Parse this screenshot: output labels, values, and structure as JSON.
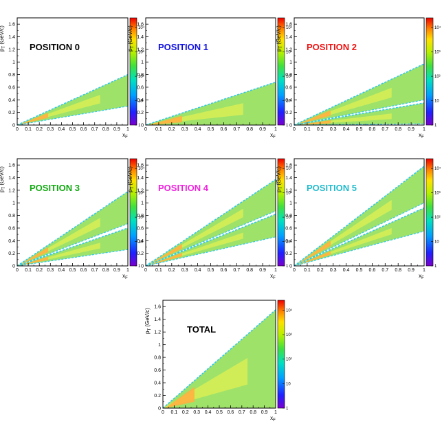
{
  "colors": {
    "position_0": "#000000",
    "position_1": "#1010e0",
    "position_2": "#ee1111",
    "position_3": "#11aa11",
    "position_4": "#ee22dd",
    "position_5": "#22bbcc",
    "total": "#000000",
    "palette": "rainbow (violet-blue-cyan-green-yellow-red), log z scale"
  },
  "chart_data": [
    {
      "type": "heatmap",
      "title": "POSITION 0",
      "title_color": "#000000",
      "xlabel": "x_F",
      "ylabel": "p_T (GeV/c)",
      "xlim": [
        0,
        1
      ],
      "ylim": [
        0,
        1.7
      ],
      "x_ticks": [
        "0",
        "0.1",
        "0.2",
        "0.3",
        "0.4",
        "0.5",
        "0.6",
        "0.7",
        "0.8",
        "0.9",
        "1"
      ],
      "y_ticks": [
        "0",
        "0.2",
        "0.4",
        "0.6",
        "0.8",
        "1",
        "1.2",
        "1.4",
        "1.6"
      ],
      "z_scale": "log",
      "z_ticks": [
        "1",
        "10",
        "10²",
        "10³",
        "10⁴"
      ],
      "bands": [
        {
          "x_end": 1,
          "pt_low_at_x1": 0.3,
          "pt_high_at_x1": 0.8
        }
      ]
    },
    {
      "type": "heatmap",
      "title": "POSITION 1",
      "title_color": "#1010e0",
      "xlabel": "x_F",
      "ylabel": "p_T (GeV/c)",
      "xlim": [
        0,
        1
      ],
      "ylim": [
        0,
        1.7
      ],
      "x_ticks": [
        "0",
        "0.1",
        "0.2",
        "0.3",
        "0.4",
        "0.5",
        "0.6",
        "0.7",
        "0.8",
        "0.9",
        "1"
      ],
      "y_ticks": [
        "0",
        "0.2",
        "0.4",
        "0.6",
        "0.8",
        "1",
        "1.2",
        "1.4",
        "1.6"
      ],
      "z_scale": "log",
      "z_ticks": [
        "1",
        "10",
        "10²",
        "10³",
        "10⁴"
      ],
      "bands": [
        {
          "x_end": 1,
          "pt_low_at_x1": 0,
          "pt_high_at_x1": 0.68
        }
      ]
    },
    {
      "type": "heatmap",
      "title": "POSITION 2",
      "title_color": "#ee1111",
      "xlabel": "x_F",
      "ylabel": "p_T (GeV/c)",
      "xlim": [
        0,
        1
      ],
      "ylim": [
        0,
        1.7
      ],
      "x_ticks": [
        "0",
        "0.1",
        "0.2",
        "0.3",
        "0.4",
        "0.5",
        "0.6",
        "0.7",
        "0.8",
        "0.9",
        "1"
      ],
      "y_ticks": [
        "0",
        "0.2",
        "0.4",
        "0.6",
        "0.8",
        "1",
        "1.2",
        "1.4",
        "1.6"
      ],
      "z_scale": "log",
      "z_ticks": [
        "1",
        "10",
        "10²",
        "10³",
        "10⁴"
      ],
      "bands": [
        {
          "x_end": 1,
          "pt_low_at_x1": 0.4,
          "pt_high_at_x1": 0.97
        },
        {
          "x_end": 1,
          "pt_low_at_x1": 0.02,
          "pt_high_at_x1": 0.35
        }
      ]
    },
    {
      "type": "heatmap",
      "title": "POSITION 3",
      "title_color": "#11aa11",
      "xlabel": "x_F",
      "ylabel": "p_T (GeV/c)",
      "xlim": [
        0,
        1
      ],
      "ylim": [
        0,
        1.7
      ],
      "x_ticks": [
        "0",
        "0.1",
        "0.2",
        "0.3",
        "0.4",
        "0.5",
        "0.6",
        "0.7",
        "0.8",
        "0.9",
        "1"
      ],
      "y_ticks": [
        "0",
        "0.2",
        "0.4",
        "0.6",
        "0.8",
        "1",
        "1.2",
        "1.4",
        "1.6"
      ],
      "z_scale": "log",
      "z_ticks": [
        "1",
        "10",
        "10²",
        "10³",
        "10⁴"
      ],
      "bands": [
        {
          "x_end": 1,
          "pt_low_at_x1": 0.67,
          "pt_high_at_x1": 1.18
        },
        {
          "x_end": 1,
          "pt_low_at_x1": 0.26,
          "pt_high_at_x1": 0.6
        }
      ]
    },
    {
      "type": "heatmap",
      "title": "POSITION 4",
      "title_color": "#ee22dd",
      "xlabel": "x_F",
      "ylabel": "p_T (GeV/c)",
      "xlim": [
        0,
        1
      ],
      "ylim": [
        0,
        1.7
      ],
      "x_ticks": [
        "0",
        "0.1",
        "0.2",
        "0.3",
        "0.4",
        "0.5",
        "0.6",
        "0.7",
        "0.8",
        "0.9",
        "1"
      ],
      "y_ticks": [
        "0",
        "0.2",
        "0.4",
        "0.6",
        "0.8",
        "1",
        "1.2",
        "1.4",
        "1.6"
      ],
      "z_scale": "log",
      "z_ticks": [
        "1",
        "10",
        "10²",
        "10³",
        "10⁴"
      ],
      "bands": [
        {
          "x_end": 1,
          "pt_low_at_x1": 0.87,
          "pt_high_at_x1": 1.37
        },
        {
          "x_end": 1,
          "pt_low_at_x1": 0.46,
          "pt_high_at_x1": 0.82
        }
      ]
    },
    {
      "type": "heatmap",
      "title": "POSITION 5",
      "title_color": "#22bbcc",
      "xlabel": "x_F",
      "ylabel": "p_T (GeV/c)",
      "xlim": [
        0,
        1
      ],
      "ylim": [
        0,
        1.7
      ],
      "x_ticks": [
        "0",
        "0.1",
        "0.2",
        "0.3",
        "0.4",
        "0.5",
        "0.6",
        "0.7",
        "0.8",
        "0.9",
        "1"
      ],
      "y_ticks": [
        "0",
        "0.2",
        "0.4",
        "0.6",
        "0.8",
        "1",
        "1.2",
        "1.4",
        "1.6"
      ],
      "z_scale": "log",
      "z_ticks": [
        "1",
        "10",
        "10²",
        "10³",
        "10⁴"
      ],
      "bands": [
        {
          "x_end": 1,
          "pt_low_at_x1": 1.0,
          "pt_high_at_x1": 1.58
        },
        {
          "x_end": 1,
          "pt_low_at_x1": 0.55,
          "pt_high_at_x1": 0.92
        }
      ]
    },
    {
      "type": "heatmap",
      "title": "TOTAL",
      "title_color": "#000000",
      "xlabel": "x_F",
      "ylabel": "p_T (GeV/c)",
      "xlim": [
        0,
        1
      ],
      "ylim": [
        0,
        1.7
      ],
      "x_ticks": [
        "0",
        "0.1",
        "0.2",
        "0.3",
        "0.4",
        "0.5",
        "0.6",
        "0.7",
        "0.8",
        "0.9",
        "1"
      ],
      "y_ticks": [
        "0",
        "0.2",
        "0.4",
        "0.6",
        "0.8",
        "1",
        "1.2",
        "1.4",
        "1.6"
      ],
      "z_scale": "log",
      "z_ticks": [
        "1",
        "10",
        "10²",
        "10³",
        "10⁴"
      ],
      "bands": [
        {
          "x_end": 1,
          "pt_low_at_x1": 0,
          "pt_high_at_x1": 1.55
        }
      ]
    }
  ]
}
